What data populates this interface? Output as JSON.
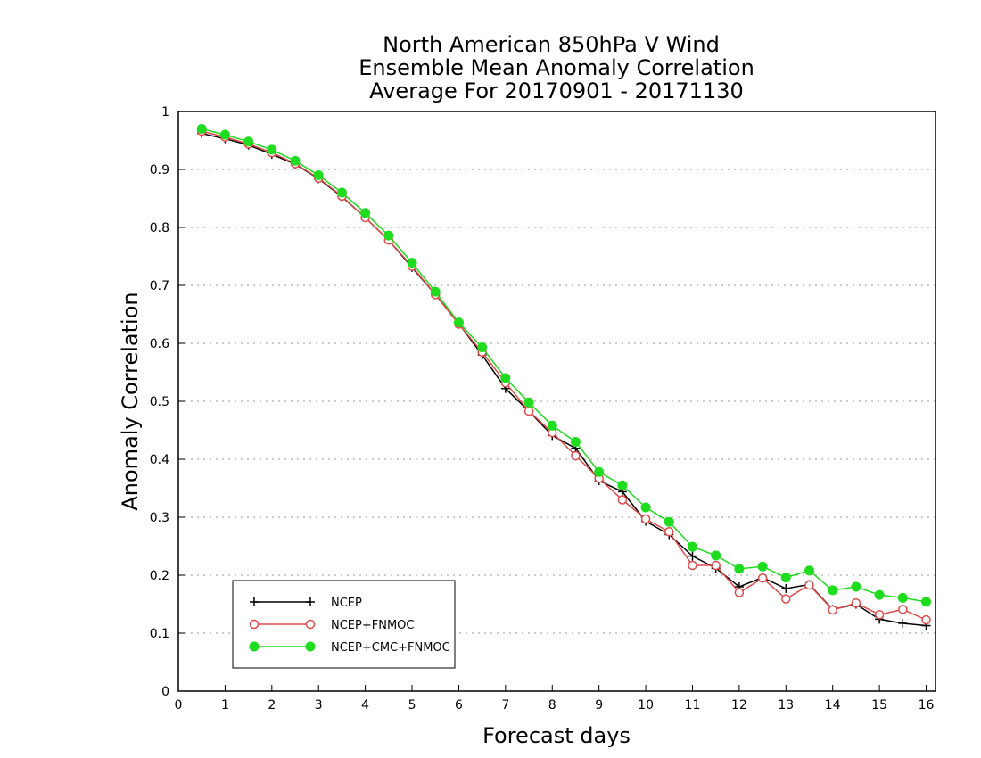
{
  "chart_data": {
    "type": "line",
    "title": [
      "North American 850hPa V Wind",
      "Ensemble Mean Anomaly Correlation",
      "Average For 20170901 - 20171130"
    ],
    "xlabel": "Forecast days",
    "ylabel": "Anomaly Correlation",
    "xlim": [
      0,
      16.2
    ],
    "ylim": [
      0,
      1
    ],
    "x_ticks": [
      0,
      1,
      2,
      3,
      4,
      5,
      6,
      7,
      8,
      9,
      10,
      11,
      12,
      13,
      14,
      15,
      16
    ],
    "y_ticks": [
      0,
      0.1,
      0.2,
      0.3,
      0.4,
      0.5,
      0.6,
      0.7,
      0.8,
      0.9,
      1
    ],
    "y_tick_labels": [
      "0",
      "0.1",
      "0.2",
      "0.3",
      "0.4",
      "0.5",
      "0.6",
      "0.7",
      "0.8",
      "0.9",
      "1"
    ],
    "grid": "horizontal-dotted",
    "legend_position": "bottom-left",
    "x": [
      0.5,
      1,
      1.5,
      2,
      2.5,
      3,
      3.5,
      4,
      4.5,
      5,
      5.5,
      6,
      6.5,
      7,
      7.5,
      8,
      8.5,
      9,
      9.5,
      10,
      10.5,
      11,
      11.5,
      12,
      12.5,
      13,
      13.5,
      14,
      14.5,
      15,
      15.5,
      16
    ],
    "series": [
      {
        "name": "NCEP",
        "color": "#000000",
        "marker": "plus",
        "values": [
          0.962,
          0.953,
          0.942,
          0.926,
          0.909,
          0.884,
          0.853,
          0.817,
          0.778,
          0.731,
          0.684,
          0.634,
          0.58,
          0.522,
          0.483,
          0.441,
          0.419,
          0.363,
          0.344,
          0.293,
          0.27,
          0.233,
          0.212,
          0.18,
          0.196,
          0.177,
          0.184,
          0.141,
          0.15,
          0.124,
          0.117,
          0.113
        ]
      },
      {
        "name": "NCEP+FNMOC",
        "color": "#e24a4a",
        "marker": "open-circle",
        "values": [
          0.966,
          0.956,
          0.944,
          0.929,
          0.91,
          0.885,
          0.854,
          0.817,
          0.778,
          0.733,
          0.684,
          0.633,
          0.585,
          0.532,
          0.483,
          0.446,
          0.406,
          0.367,
          0.33,
          0.297,
          0.275,
          0.217,
          0.217,
          0.17,
          0.195,
          0.159,
          0.183,
          0.14,
          0.152,
          0.132,
          0.141,
          0.123
        ]
      },
      {
        "name": "NCEP+CMC+FNMOC",
        "color": "#1edc1e",
        "marker": "filled-circle",
        "values": [
          0.97,
          0.96,
          0.948,
          0.934,
          0.915,
          0.89,
          0.86,
          0.825,
          0.786,
          0.739,
          0.689,
          0.636,
          0.593,
          0.54,
          0.498,
          0.458,
          0.43,
          0.378,
          0.355,
          0.317,
          0.292,
          0.249,
          0.234,
          0.211,
          0.215,
          0.196,
          0.208,
          0.174,
          0.18,
          0.166,
          0.161,
          0.154
        ]
      }
    ]
  }
}
